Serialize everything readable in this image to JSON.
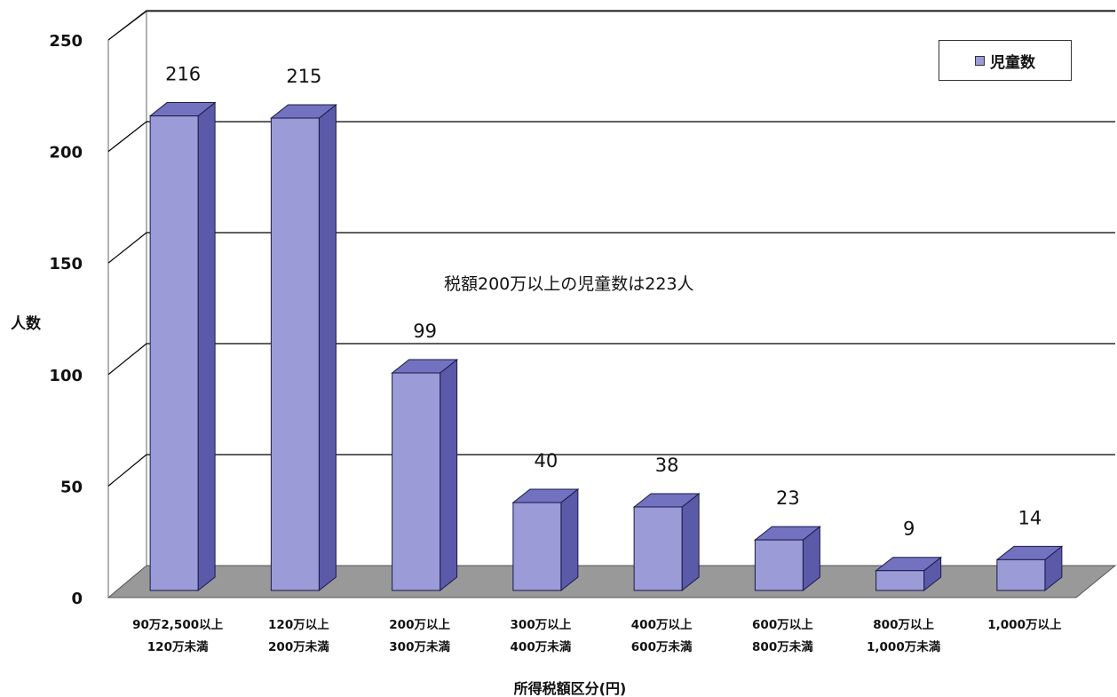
{
  "chart_data": {
    "type": "bar",
    "ylabel": "人数",
    "xlabel": "所得税額区分(円)",
    "ylim": [
      0,
      250
    ],
    "yticks": [
      0,
      50,
      100,
      150,
      200,
      250
    ],
    "categories": [
      [
        "90万2,500以上",
        "120万未満"
      ],
      [
        "120万以上",
        "200万未満"
      ],
      [
        "200万以上",
        "300万未満"
      ],
      [
        "300万以上",
        "400万未満"
      ],
      [
        "400万以上",
        "600万未満"
      ],
      [
        "600万以上",
        "800万未満"
      ],
      [
        "800万以上",
        "1,000万未満"
      ],
      [
        "1,000万以上"
      ]
    ],
    "series": [
      {
        "name": "児童数",
        "values": [
          216,
          215,
          99,
          40,
          38,
          23,
          9,
          14
        ]
      }
    ],
    "data_labels": [
      "216",
      "215",
      "99",
      "40",
      "38",
      "23",
      "9",
      "14"
    ],
    "annotation": "税額200万以上の児童数は223人",
    "legend_position": "top-right",
    "grid": true,
    "colors": {
      "bar_front": "#9b9bd7",
      "bar_side": "#5a5aa8",
      "bar_top": "#7272c0",
      "floor": "#999999",
      "gridline": "#000000",
      "legend_swatch": "#9b9bd7"
    }
  }
}
